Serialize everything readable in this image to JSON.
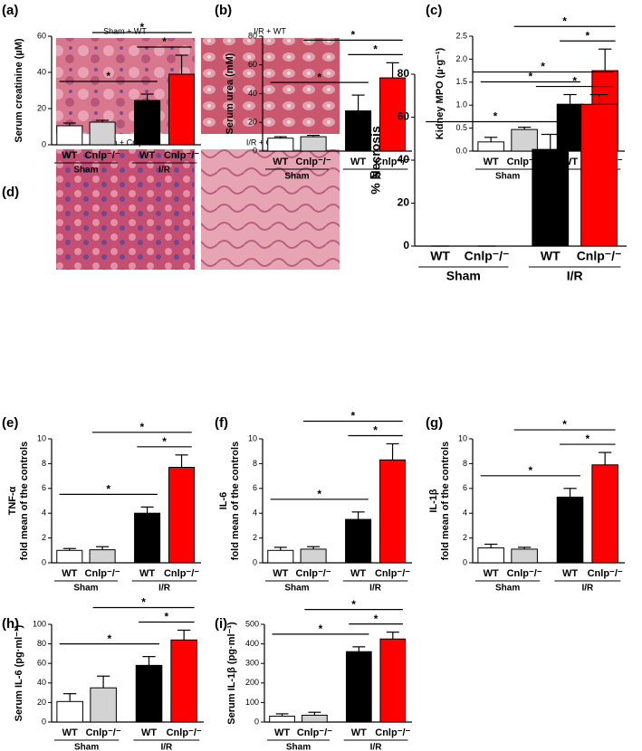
{
  "chart_data": [
    {
      "type": "bar",
      "panel_label": "(a)",
      "ylabel": [
        "Serum creatinine (µM)"
      ],
      "categories": [
        "WT",
        "Cnlp⁻/⁻",
        "WT",
        "Cnlp⁻/⁻"
      ],
      "groups": [
        "Sham",
        "I/R"
      ],
      "colors": [
        "#ffffff",
        "#d3d3d3",
        "#000000",
        "#ff0000"
      ],
      "values": [
        10.5,
        12.5,
        24.5,
        39
      ],
      "errors": [
        1.5,
        1,
        3.5,
        10.5
      ],
      "ylim": [
        0,
        60
      ],
      "yticks": [
        0,
        20,
        40,
        60
      ],
      "significance": [
        "*",
        "*",
        "*"
      ]
    },
    {
      "type": "bar",
      "panel_label": "(b)",
      "ylabel": [
        "Serum urea (mM)"
      ],
      "categories": [
        "WT",
        "Cnlp⁻/⁻",
        "WT",
        "Cnlp⁻/⁻"
      ],
      "groups": [
        "Sham",
        "I/R"
      ],
      "colors": [
        "#ffffff",
        "#d3d3d3",
        "#000000",
        "#ff0000"
      ],
      "values": [
        9,
        10,
        28,
        51
      ],
      "errors": [
        1,
        1,
        11,
        10.5
      ],
      "ylim": [
        0,
        80
      ],
      "yticks": [
        0,
        20,
        40,
        60,
        80
      ],
      "significance": [
        "*",
        "*",
        "*"
      ]
    },
    {
      "type": "bar",
      "panel_label": "(c)",
      "ylabel": [
        "Kidney MPO (µ·g⁻¹)"
      ],
      "categories": [
        "WT",
        "Cnlp⁻/⁻",
        "WT",
        "Cnlp⁻/⁻"
      ],
      "groups": [
        "Sham",
        "I/R"
      ],
      "colors": [
        "#ffffff",
        "#d3d3d3",
        "#000000",
        "#ff0000"
      ],
      "values": [
        0.2,
        0.47,
        1.02,
        1.75
      ],
      "errors": [
        0.1,
        0.05,
        0.21,
        0.47
      ],
      "ylim": [
        0,
        2.5
      ],
      "yticks": [
        {
          "value": 0,
          "label": "0.0"
        },
        0.5,
        {
          "value": 1,
          "label": "1.0"
        },
        1.5,
        {
          "value": 2,
          "label": "2.0"
        },
        2.5
      ],
      "significance": [
        "*",
        "*",
        "*"
      ]
    },
    {
      "type": "bar",
      "panel_label": "(d)",
      "ylabel": [
        "% Necrosis"
      ],
      "categories": [
        "WT",
        "Cnlp⁻/⁻",
        "WT",
        "Cnlp⁻/⁻"
      ],
      "groups": [
        "Sham",
        "I/R"
      ],
      "colors": [
        "#ffffff",
        "#d3d3d3",
        "#000000",
        "#ff0000"
      ],
      "values": [
        0,
        0,
        45,
        66
      ],
      "errors": [
        0,
        0,
        7,
        4.5
      ],
      "ylim": [
        0,
        80
      ],
      "yticks": [
        0,
        20,
        40,
        60,
        80
      ],
      "significance": [
        "*",
        "*",
        "*"
      ],
      "image_captions": [
        "Sham + WT",
        "I/R + WT",
        "Sham + Cnlp⁻/⁻",
        "I/R + Cnlp⁻/⁻"
      ]
    },
    {
      "type": "bar",
      "panel_label": "(e)",
      "ylabel": [
        "TNF-α",
        "fold mean of the controls"
      ],
      "categories": [
        "WT",
        "Cnlp⁻/⁻",
        "WT",
        "Cnlp⁻/⁻"
      ],
      "groups": [
        "Sham",
        "I/R"
      ],
      "colors": [
        "#ffffff",
        "#d3d3d3",
        "#000000",
        "#ff0000"
      ],
      "values": [
        1,
        1.05,
        4,
        7.7
      ],
      "errors": [
        0.15,
        0.25,
        0.5,
        1
      ],
      "ylim": [
        0,
        10
      ],
      "yticks": [
        0,
        2,
        4,
        6,
        8,
        10
      ],
      "significance": [
        "*",
        "*",
        "*"
      ]
    },
    {
      "type": "bar",
      "panel_label": "(f)",
      "ylabel": [
        "IL-6",
        "fold mean of the controls"
      ],
      "categories": [
        "WT",
        "Cnlp⁻/⁻",
        "WT",
        "Cnlp⁻/⁻"
      ],
      "groups": [
        "Sham",
        "I/R"
      ],
      "colors": [
        "#ffffff",
        "#d3d3d3",
        "#000000",
        "#ff0000"
      ],
      "values": [
        1,
        1.1,
        3.5,
        8.3
      ],
      "errors": [
        0.25,
        0.2,
        0.6,
        1.3
      ],
      "ylim": [
        0,
        10
      ],
      "yticks": [
        0,
        2,
        4,
        6,
        8,
        10
      ],
      "significance": [
        "*",
        "*",
        "*"
      ]
    },
    {
      "type": "bar",
      "panel_label": "(g)",
      "ylabel": [
        "IL-1β",
        "fold mean of the controls"
      ],
      "categories": [
        "WT",
        "Cnlp⁻/⁻",
        "WT",
        "Cnlp⁻/⁻"
      ],
      "groups": [
        "Sham",
        "I/R"
      ],
      "colors": [
        "#ffffff",
        "#d3d3d3",
        "#000000",
        "#ff0000"
      ],
      "values": [
        1.2,
        1.1,
        5.3,
        7.9
      ],
      "errors": [
        0.3,
        0.15,
        0.7,
        1
      ],
      "ylim": [
        0,
        10
      ],
      "yticks": [
        0,
        2,
        4,
        6,
        8,
        10
      ],
      "significance": [
        "*",
        "*",
        "*"
      ]
    },
    {
      "type": "bar",
      "panel_label": "(h)",
      "ylabel": [
        "Serum IL-6 (pg·ml⁻¹)"
      ],
      "categories": [
        "WT",
        "Cnlp⁻/⁻",
        "WT",
        "Cnlp⁻/⁻"
      ],
      "groups": [
        "Sham",
        "I/R"
      ],
      "colors": [
        "#ffffff",
        "#d3d3d3",
        "#000000",
        "#ff0000"
      ],
      "values": [
        21,
        35,
        58,
        84
      ],
      "errors": [
        8,
        12,
        9,
        10
      ],
      "ylim": [
        0,
        100
      ],
      "yticks": [
        0,
        20,
        40,
        60,
        80,
        100
      ],
      "significance": [
        "*",
        "*",
        "*"
      ]
    },
    {
      "type": "bar",
      "panel_label": "(i)",
      "ylabel": [
        "Serum IL-1β (pg·ml⁻¹)"
      ],
      "categories": [
        "WT",
        "Cnlp⁻/⁻",
        "WT",
        "Cnlp⁻/⁻"
      ],
      "groups": [
        "Sham",
        "I/R"
      ],
      "colors": [
        "#ffffff",
        "#d3d3d3",
        "#000000",
        "#ff0000"
      ],
      "values": [
        30,
        35,
        360,
        425
      ],
      "errors": [
        12,
        15,
        25,
        35
      ],
      "ylim": [
        0,
        500
      ],
      "yticks": [
        0,
        100,
        200,
        300,
        400,
        500
      ],
      "significance": [
        "*",
        "*",
        "*"
      ]
    }
  ]
}
